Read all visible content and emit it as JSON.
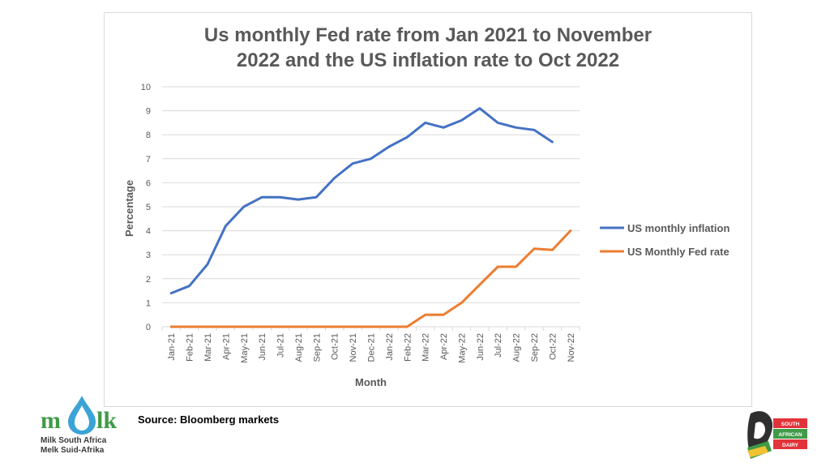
{
  "chart_data": {
    "type": "line",
    "title_lines": [
      "Us monthly Fed rate from Jan 2021 to November",
      "2022 and the US inflation rate to Oct 2022"
    ],
    "xlabel": "Month",
    "ylabel": "Percentage",
    "ylim": [
      0,
      10
    ],
    "yticks": [
      0,
      1,
      2,
      3,
      4,
      5,
      6,
      7,
      8,
      9,
      10
    ],
    "grid": true,
    "legend_position": "right",
    "categories": [
      "Jan-21",
      "Feb-21",
      "Mar-21",
      "Apr-21",
      "May-21",
      "Jun-21",
      "Jul-21",
      "Aug-21",
      "Sep-21",
      "Oct-21",
      "Nov-21",
      "Dec-21",
      "Jan-22",
      "Feb-22",
      "Mar-22",
      "Apr-22",
      "May-22",
      "Jun-22",
      "Jul-22",
      "Aug-22",
      "Sep-22",
      "Oct-22",
      "Nov-22"
    ],
    "series": [
      {
        "name": "US monthly inflation",
        "color": "#4472c4",
        "values": [
          1.4,
          1.7,
          2.6,
          4.2,
          5.0,
          5.4,
          5.4,
          5.3,
          5.4,
          6.2,
          6.8,
          7.0,
          7.5,
          7.9,
          8.5,
          8.3,
          8.6,
          9.1,
          8.5,
          8.3,
          8.2,
          7.7,
          null
        ]
      },
      {
        "name": "US Monthly Fed rate",
        "color": "#ed7d31",
        "values": [
          0,
          0,
          0,
          0,
          0,
          0,
          0,
          0,
          0,
          0,
          0,
          0,
          0,
          0,
          0.5,
          0.5,
          1.0,
          1.75,
          2.5,
          2.5,
          3.25,
          3.2,
          4.0
        ]
      }
    ]
  },
  "source": "Source: Bloomberg markets",
  "logos": {
    "left_mark_text": "mlk",
    "left_caption": [
      "Milk South Africa",
      "Melk Suid-Afrika"
    ],
    "right_label": [
      "SOUTH",
      "AFRICAN",
      "DAIRY"
    ]
  },
  "colors": {
    "grid": "#d9d9d9",
    "axis_text": "#595959",
    "green": "#3f9b47",
    "red": "#e2333a"
  }
}
